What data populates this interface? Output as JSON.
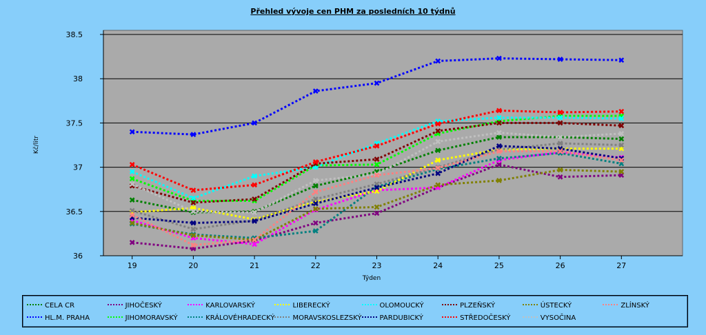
{
  "chart_data": {
    "type": "line",
    "title": "Přehled vývoje cen PHM za posledních 10 týdnů",
    "xlabel": "Týden",
    "ylabel": "Kč/litr",
    "x": [
      19,
      20,
      21,
      22,
      23,
      24,
      25,
      26,
      27
    ],
    "ylim": [
      36,
      38.5
    ],
    "yticks": [
      "36",
      "36.5",
      "37",
      "37.5",
      "38",
      "38.5"
    ],
    "grid": "horizontal",
    "legend": "bottom",
    "series": [
      {
        "name": "CELA CR",
        "color": "#008000",
        "values": [
          36.63,
          36.49,
          36.5,
          36.79,
          36.95,
          37.19,
          37.34,
          37.34,
          37.32
        ]
      },
      {
        "name": "HL.M. PRAHA",
        "color": "#0000ff",
        "values": [
          37.4,
          37.37,
          37.5,
          37.86,
          37.95,
          38.2,
          38.23,
          38.22,
          38.21
        ]
      },
      {
        "name": "JIHOČESKÝ",
        "color": "#800080",
        "values": [
          36.15,
          36.08,
          36.17,
          36.37,
          36.48,
          36.77,
          37.03,
          36.89,
          36.91
        ]
      },
      {
        "name": "JIHOMORAVSKÝ",
        "color": "#00ff00",
        "values": [
          36.87,
          36.62,
          36.62,
          37.02,
          37.03,
          37.38,
          37.52,
          37.58,
          37.58
        ]
      },
      {
        "name": "KARLOVARSKÝ",
        "color": "#ff00ff",
        "values": [
          36.4,
          36.2,
          36.13,
          36.52,
          36.74,
          36.77,
          37.08,
          37.17,
          37.11
        ]
      },
      {
        "name": "KRÁLOVÉHRADECKÝ",
        "color": "#008080",
        "values": [
          36.36,
          36.24,
          36.2,
          36.28,
          36.78,
          36.98,
          37.1,
          37.16,
          37.04
        ]
      },
      {
        "name": "LIBERECKÝ",
        "color": "#ffff00",
        "values": [
          36.49,
          36.54,
          36.41,
          36.61,
          36.73,
          37.08,
          37.2,
          37.21,
          37.21
        ]
      },
      {
        "name": "MORAVSKOSLEZSKÝ",
        "color": "#808080",
        "values": [
          36.51,
          36.3,
          36.4,
          36.64,
          36.81,
          37.0,
          37.2,
          37.27,
          37.25
        ]
      },
      {
        "name": "OLOMOUCKÝ",
        "color": "#00ffff",
        "values": [
          36.95,
          36.65,
          36.9,
          37.0,
          37.27,
          37.52,
          37.56,
          37.56,
          37.55
        ]
      },
      {
        "name": "PARDUBICKÝ",
        "color": "#000080",
        "values": [
          36.43,
          36.37,
          36.39,
          36.59,
          36.77,
          36.93,
          37.24,
          37.21,
          37.1
        ]
      },
      {
        "name": "PLZEŇSKÝ",
        "color": "#800000",
        "values": [
          36.79,
          36.6,
          36.64,
          37.04,
          37.09,
          37.41,
          37.5,
          37.5,
          37.47
        ]
      },
      {
        "name": "STŘEDOČESKÝ",
        "color": "#ff0000",
        "values": [
          37.03,
          36.74,
          36.8,
          37.06,
          37.24,
          37.49,
          37.64,
          37.62,
          37.63
        ]
      },
      {
        "name": "ÚSTECKÝ",
        "color": "#808000",
        "values": [
          36.37,
          36.23,
          36.18,
          36.53,
          36.55,
          36.8,
          36.85,
          36.97,
          36.95
        ]
      },
      {
        "name": "VYSOČINA",
        "color": "#c0c0c0",
        "values": [
          36.81,
          36.5,
          36.49,
          36.85,
          36.92,
          37.29,
          37.39,
          37.34,
          37.38
        ]
      },
      {
        "name": "ZLÍNSKÝ",
        "color": "#ff8080",
        "values": [
          36.46,
          36.12,
          36.18,
          36.72,
          36.91,
          36.99,
          37.18,
          37.18,
          37.08
        ]
      }
    ]
  }
}
